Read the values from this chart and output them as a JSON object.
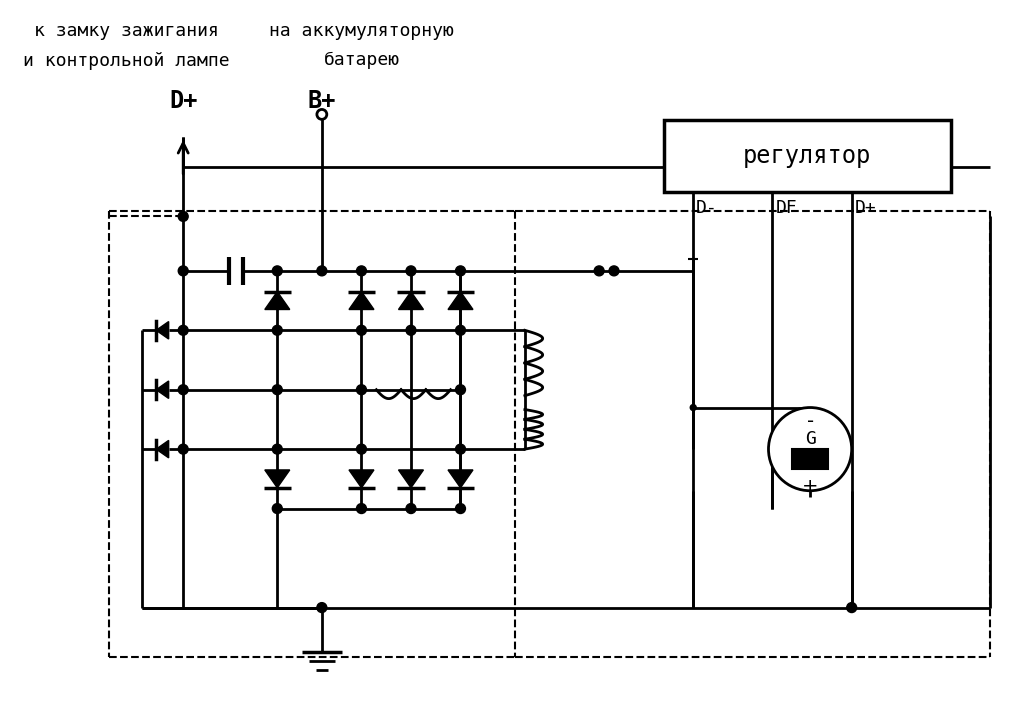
{
  "bg": "#ffffff",
  "lc": "#000000",
  "lw": 2.0,
  "lw2": 2.5,
  "lw_dash": 1.5,
  "fs_title": 13,
  "fs_label": 17,
  "fs_term": 13,
  "font": "monospace",
  "t1": "к замку зажигания",
  "t2": "и контрольной лампе",
  "t3": "на аккумуляторную",
  "t4": "батарею",
  "lDp1": "D+",
  "lBp": "B+",
  "lDm": "D-",
  "lDF": "DF",
  "lDp2": "D+",
  "lReg": "регулятор",
  "lG": "G"
}
